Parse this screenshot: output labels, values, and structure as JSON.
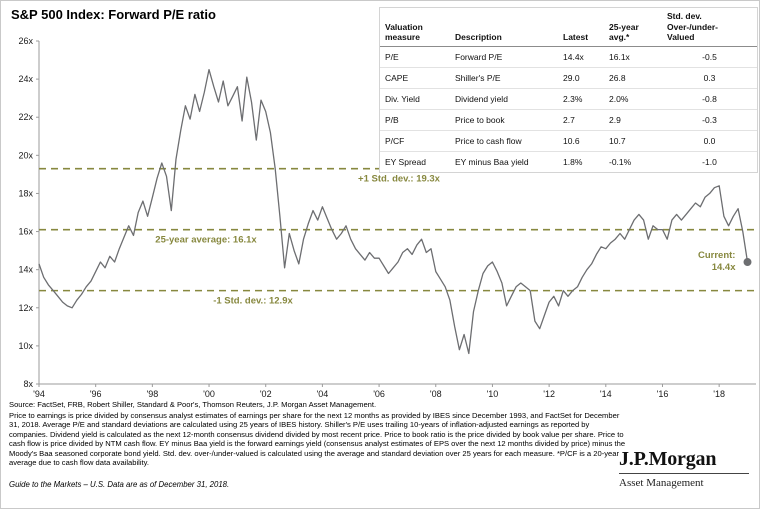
{
  "title": "S&P 500 Index: Forward P/E ratio",
  "table": {
    "headers": [
      "Valuation\nmeasure",
      "Description",
      "Latest",
      "25-year\navg.*",
      "Std. dev.\nOver-/under-\nValued"
    ],
    "rows": [
      [
        "P/E",
        "Forward P/E",
        "14.4x",
        "16.1x",
        "-0.5"
      ],
      [
        "CAPE",
        "Shiller's P/E",
        "29.0",
        "26.8",
        "0.3"
      ],
      [
        "Div. Yield",
        "Dividend yield",
        "2.3%",
        "2.0%",
        "-0.8"
      ],
      [
        "P/B",
        "Price to book",
        "2.7",
        "2.9",
        "-0.3"
      ],
      [
        "P/CF",
        "Price to cash flow",
        "10.6",
        "10.7",
        "0.0"
      ],
      [
        "EY Spread",
        "EY minus Baa yield",
        "1.8%",
        "-0.1%",
        "-1.0"
      ]
    ]
  },
  "chart_data": {
    "type": "line",
    "title": "S&P 500 Index: Forward P/E ratio",
    "xlabel": "",
    "ylabel": "Forward P/E ratio",
    "x_range": [
      1994,
      2019.3
    ],
    "ylim": [
      8,
      26
    ],
    "grid": false,
    "y_tick_values": [
      8,
      10,
      12,
      14,
      16,
      18,
      20,
      22,
      24,
      26
    ],
    "y_ticks": [
      "8x",
      "10x",
      "12x",
      "14x",
      "16x",
      "18x",
      "20x",
      "22x",
      "24x",
      "26x"
    ],
    "x_tick_years": [
      1994,
      1996,
      1998,
      2000,
      2002,
      2004,
      2006,
      2008,
      2010,
      2012,
      2014,
      2016,
      2018
    ],
    "x_ticks": [
      "'94",
      "'96",
      "'98",
      "'00",
      "'02",
      "'04",
      "'06",
      "'08",
      "'10",
      "'12",
      "'14",
      "'16",
      "'18"
    ],
    "reference_lines": [
      {
        "label": "+1 Std. dev.: 19.3x",
        "value": 19.3
      },
      {
        "label": "25-year average: 16.1x",
        "value": 16.1
      },
      {
        "label": "-1 Std. dev.: 12.9x",
        "value": 12.9
      }
    ],
    "current": {
      "label_lines": [
        "Current:",
        "14.4x"
      ],
      "value": 14.4
    },
    "series": [
      {
        "name": "Forward P/E",
        "x_start": 1994,
        "x_step": 0.166667,
        "values": [
          14.3,
          13.6,
          13.2,
          12.9,
          12.6,
          12.3,
          12.1,
          12.0,
          12.4,
          12.7,
          13.1,
          13.4,
          13.9,
          14.4,
          14.1,
          14.7,
          14.4,
          15.1,
          15.7,
          16.3,
          15.8,
          17.0,
          17.6,
          16.8,
          17.8,
          18.8,
          19.6,
          18.9,
          17.1,
          19.8,
          21.3,
          22.6,
          21.9,
          23.2,
          22.3,
          23.3,
          24.5,
          23.6,
          22.8,
          23.9,
          22.6,
          23.1,
          23.6,
          21.8,
          24.1,
          22.8,
          20.8,
          22.9,
          22.3,
          21.2,
          19.3,
          16.8,
          14.1,
          15.9,
          15.0,
          14.3,
          15.6,
          16.4,
          17.1,
          16.6,
          17.3,
          16.7,
          16.1,
          15.6,
          15.9,
          16.3,
          15.6,
          15.1,
          14.8,
          14.5,
          14.9,
          14.6,
          14.6,
          14.2,
          13.8,
          14.1,
          14.4,
          14.9,
          15.1,
          14.8,
          15.3,
          15.6,
          14.9,
          15.1,
          13.9,
          13.5,
          13.1,
          12.4,
          11.0,
          9.8,
          10.6,
          9.6,
          11.8,
          12.9,
          13.8,
          14.2,
          14.4,
          13.9,
          13.3,
          12.1,
          12.6,
          13.1,
          13.3,
          13.1,
          12.9,
          11.3,
          10.9,
          11.6,
          12.3,
          12.6,
          12.1,
          12.9,
          12.6,
          12.9,
          13.1,
          13.6,
          14.0,
          14.3,
          14.8,
          15.2,
          15.1,
          15.4,
          15.6,
          15.9,
          15.6,
          16.1,
          16.6,
          16.9,
          16.6,
          15.6,
          16.3,
          16.1,
          16.1,
          15.6,
          16.6,
          16.9,
          16.6,
          16.9,
          17.2,
          17.5,
          17.3,
          17.8,
          18.0,
          18.3,
          18.4,
          16.8,
          16.3,
          16.8,
          17.2,
          16.0,
          14.4
        ]
      }
    ]
  },
  "footer": {
    "source": "Source: FactSet, FRB, Robert Shiller, Standard & Poor's, Thomson Reuters, J.P. Morgan Asset Management.",
    "note": "Price to earnings is price divided by consensus analyst estimates of earnings per share for the next 12 months as provided by IBES since December 1993, and FactSet for December 31, 2018. Average P/E and standard deviations are calculated using 25 years of IBES history. Shiller's P/E uses trailing 10-years of inflation-adjusted earnings as reported by companies. Dividend yield is calculated as the next 12-month consensus dividend divided by most recent price. Price to book ratio is the price divided by book value per share. Price to cash flow is price divided by NTM cash flow. EY minus Baa yield is the forward earnings yield (consensus analyst estimates of EPS over the next 12 months divided by price) minus the Moody's Baa seasoned corporate bond yield. Std. dev. over-/under-valued is calculated using the average and standard deviation over 25 years for each measure. *P/CF is a 20-year average due to cash flow data availability.",
    "guide": "Guide to the Markets – U.S. Data are as of December 31, 2018."
  },
  "logo": {
    "name": "J.P.Morgan",
    "sub": "Asset Management"
  },
  "colors": {
    "line": "#6d6e71",
    "reference": "#87883f",
    "axis": "#9b9b9b",
    "text": "#000000"
  }
}
